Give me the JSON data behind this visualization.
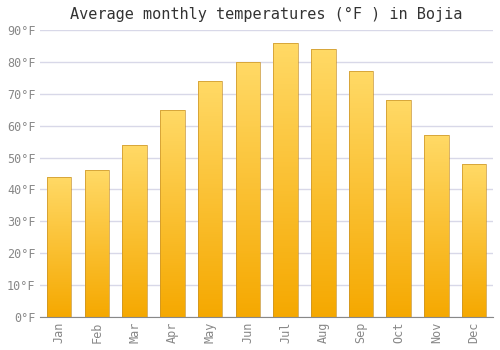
{
  "title": "Average monthly temperatures (°F ) in Bojia",
  "months": [
    "Jan",
    "Feb",
    "Mar",
    "Apr",
    "May",
    "Jun",
    "Jul",
    "Aug",
    "Sep",
    "Oct",
    "Nov",
    "Dec"
  ],
  "values": [
    44,
    46,
    54,
    65,
    74,
    80,
    86,
    84,
    77,
    68,
    57,
    48
  ],
  "bar_color_bottom": "#F5A800",
  "bar_color_top": "#FFD966",
  "bar_edge_color": "#C8922A",
  "ylim": [
    0,
    90
  ],
  "yticks": [
    0,
    10,
    20,
    30,
    40,
    50,
    60,
    70,
    80,
    90
  ],
  "ytick_labels": [
    "0°F",
    "10°F",
    "20°F",
    "30°F",
    "40°F",
    "50°F",
    "60°F",
    "70°F",
    "80°F",
    "90°F"
  ],
  "background_color": "#FFFFFF",
  "grid_color": "#D8D8E8",
  "title_fontsize": 11,
  "tick_fontsize": 8.5,
  "title_color": "#333333",
  "tick_color": "#888888"
}
